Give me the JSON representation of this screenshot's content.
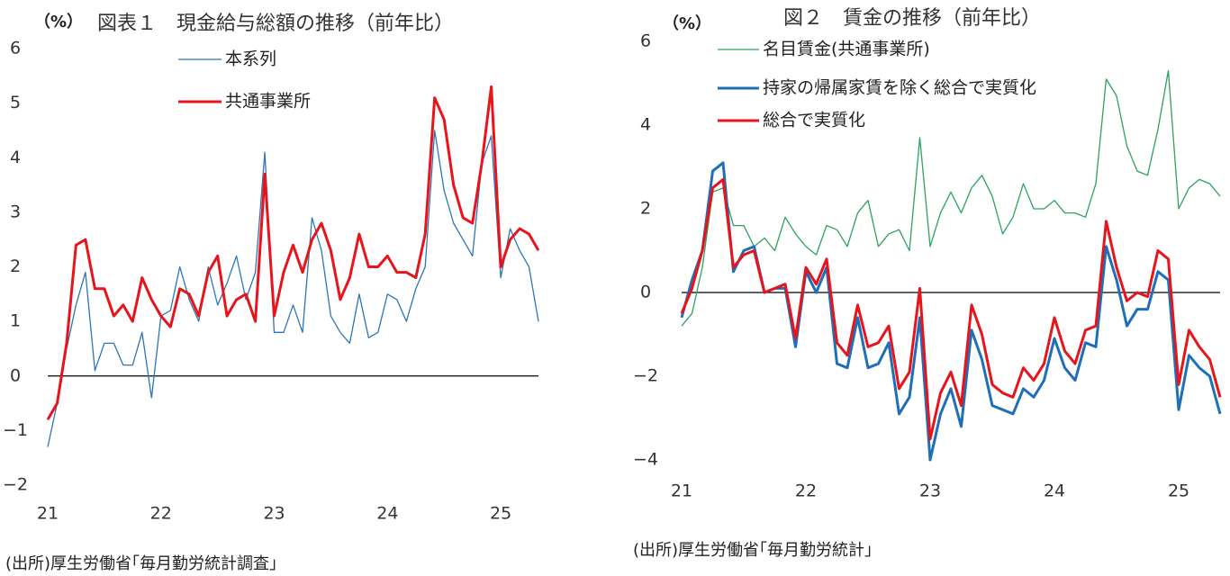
{
  "chart_data": [
    {
      "type": "line",
      "title": "図表１　現金給与総額の推移（前年比）",
      "unit": "（%）",
      "source": "(出所)厚生労働省｢毎月勤労統計調査｣",
      "x_tick_labels": [
        "21",
        "22",
        "23",
        "24",
        "25"
      ],
      "x_tick_values": [
        2021,
        2022,
        2023,
        2024,
        2025
      ],
      "x_range": [
        2021,
        2025.333
      ],
      "y_tick_labels": [
        "6",
        "5",
        "4",
        "3",
        "2",
        "1",
        "0",
        "−1",
        "−2"
      ],
      "y_tick_values": [
        6,
        5,
        4,
        3,
        2,
        1,
        0,
        -1,
        -2
      ],
      "ylim": [
        -2,
        6
      ],
      "zero_line": true,
      "legend_position": "top-center",
      "x_start": 2021,
      "x_step": 0.08333,
      "series": [
        {
          "name": "本系列",
          "color": "#2e75b6",
          "width": 1.3,
          "values": [
            -1.3,
            -0.5,
            0.5,
            1.3,
            1.9,
            0.1,
            0.6,
            0.6,
            0.2,
            0.2,
            0.8,
            -0.4,
            1.1,
            1.2,
            2.0,
            1.4,
            1.0,
            2.0,
            1.3,
            1.7,
            2.2,
            1.4,
            1.9,
            4.1,
            0.8,
            0.8,
            1.3,
            0.8,
            2.9,
            2.3,
            1.1,
            0.8,
            0.6,
            1.5,
            0.7,
            0.8,
            1.5,
            1.4,
            1.0,
            1.6,
            2.0,
            4.5,
            3.4,
            2.8,
            2.5,
            2.2,
            3.9,
            4.4,
            1.8,
            2.7,
            2.3,
            2.0,
            1.0
          ]
        },
        {
          "name": "共通事業所",
          "color": "#e8141b",
          "width": 3,
          "values": [
            -0.8,
            -0.5,
            0.6,
            2.4,
            2.5,
            1.6,
            1.6,
            1.1,
            1.3,
            1.0,
            1.8,
            1.4,
            1.1,
            0.9,
            1.6,
            1.5,
            1.1,
            1.9,
            2.2,
            1.1,
            1.4,
            1.5,
            1.0,
            3.7,
            1.1,
            1.9,
            2.4,
            1.9,
            2.5,
            2.8,
            2.3,
            1.4,
            1.8,
            2.6,
            2.0,
            2.0,
            2.2,
            1.9,
            1.9,
            1.8,
            2.6,
            5.1,
            4.7,
            3.5,
            2.9,
            2.8,
            3.9,
            5.3,
            2.0,
            2.5,
            2.7,
            2.6,
            2.3
          ]
        }
      ]
    },
    {
      "type": "line",
      "title": "図２　賃金の推移（前年比）",
      "unit": "（%）",
      "source": "(出所)厚生労働省｢毎月勤労統計｣",
      "x_tick_labels": [
        "21",
        "22",
        "23",
        "24",
        "25"
      ],
      "x_tick_values": [
        2021,
        2022,
        2023,
        2024,
        2025
      ],
      "x_range": [
        2021,
        2025.333
      ],
      "y_tick_labels": [
        "6",
        "4",
        "2",
        "0",
        "−2",
        "−4"
      ],
      "y_tick_values": [
        6,
        4,
        2,
        0,
        -2,
        -4
      ],
      "ylim": [
        -4,
        6
      ],
      "zero_line": true,
      "legend_position": "top-center",
      "x_start": 2021,
      "x_step": 0.08333,
      "series": [
        {
          "name": "名目賃金(共通事業所)",
          "color": "#2ca25f",
          "width": 1.3,
          "values": [
            -0.8,
            -0.5,
            0.6,
            2.4,
            2.5,
            1.6,
            1.6,
            1.1,
            1.3,
            1.0,
            1.8,
            1.4,
            1.1,
            0.9,
            1.6,
            1.5,
            1.1,
            1.9,
            2.2,
            1.1,
            1.4,
            1.5,
            1.0,
            3.7,
            1.1,
            1.9,
            2.4,
            1.9,
            2.5,
            2.8,
            2.3,
            1.4,
            1.8,
            2.6,
            2.0,
            2.0,
            2.2,
            1.9,
            1.9,
            1.8,
            2.6,
            5.1,
            4.7,
            3.5,
            2.9,
            2.8,
            3.9,
            5.3,
            2.0,
            2.5,
            2.7,
            2.6,
            2.3
          ]
        },
        {
          "name": "持家の帰属家賃を除く総合で実質化",
          "color": "#1f6fb8",
          "width": 3,
          "values": [
            -0.6,
            0.3,
            1.0,
            2.9,
            3.1,
            0.5,
            1.0,
            1.1,
            0.0,
            0.1,
            0.1,
            -1.3,
            0.5,
            0.0,
            0.6,
            -1.7,
            -1.8,
            -0.6,
            -1.8,
            -1.7,
            -1.2,
            -2.9,
            -2.5,
            -0.6,
            -4.0,
            -2.9,
            -2.3,
            -3.2,
            -0.9,
            -1.6,
            -2.7,
            -2.8,
            -2.9,
            -2.3,
            -2.5,
            -2.1,
            -1.1,
            -1.8,
            -2.1,
            -1.2,
            -1.3,
            1.1,
            0.3,
            -0.8,
            -0.4,
            -0.4,
            0.5,
            0.3,
            -2.8,
            -1.5,
            -1.8,
            -2.0,
            -2.9
          ]
        },
        {
          "name": "総合で実質化",
          "color": "#e8141b",
          "width": 3,
          "values": [
            -0.5,
            0.1,
            1.0,
            2.5,
            2.7,
            0.6,
            0.9,
            1.0,
            0.0,
            0.1,
            0.2,
            -1.1,
            0.6,
            0.2,
            0.8,
            -1.2,
            -1.5,
            -0.3,
            -1.3,
            -1.2,
            -0.8,
            -2.3,
            -1.9,
            0.1,
            -3.5,
            -2.4,
            -1.9,
            -2.7,
            -0.3,
            -1.0,
            -2.2,
            -2.4,
            -2.5,
            -1.8,
            -2.1,
            -1.7,
            -0.6,
            -1.4,
            -1.7,
            -0.9,
            -0.8,
            1.7,
            0.6,
            -0.2,
            0.0,
            -0.1,
            1.0,
            0.8,
            -2.2,
            -0.9,
            -1.3,
            -1.6,
            -2.5
          ]
        }
      ]
    }
  ]
}
